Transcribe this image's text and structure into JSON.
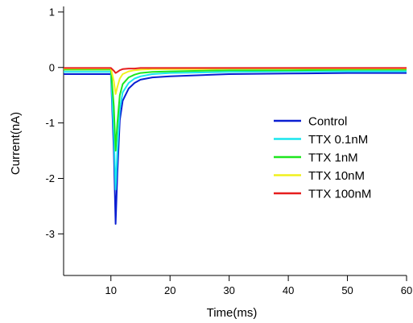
{
  "chart_data": {
    "type": "line",
    "xlabel": "Time(ms)",
    "ylabel": "Current(nA)",
    "xlim": [
      2,
      60
    ],
    "ylim": [
      -3.75,
      1.1
    ],
    "xticks": [
      10,
      20,
      30,
      40,
      50,
      60
    ],
    "yticks": [
      1,
      0,
      -1,
      -2,
      -3
    ],
    "xtick_labels": [
      "10",
      "20",
      "30",
      "40",
      "50",
      "60"
    ],
    "ytick_labels": [
      "1",
      "0",
      "-1",
      "-2",
      "-3"
    ],
    "legend_position": "right",
    "series": [
      {
        "name": "Control",
        "color": "#0a1ed2",
        "x": [
          2,
          6,
          10,
          10.5,
          10.8,
          11.1,
          11.5,
          12,
          13,
          14,
          15,
          17,
          20,
          25,
          30,
          40,
          50,
          60
        ],
        "y": [
          -0.12,
          -0.12,
          -0.12,
          -1.5,
          -2.82,
          -1.9,
          -0.95,
          -0.6,
          -0.38,
          -0.28,
          -0.22,
          -0.18,
          -0.16,
          -0.14,
          -0.12,
          -0.11,
          -0.1,
          -0.1
        ]
      },
      {
        "name": "TTX 0.1nM",
        "color": "#19e6ee",
        "x": [
          2,
          6,
          10,
          10.5,
          10.8,
          11.1,
          11.5,
          12,
          13,
          14,
          15,
          17,
          20,
          25,
          30,
          40,
          50,
          60
        ],
        "y": [
          -0.08,
          -0.08,
          -0.08,
          -1.2,
          -2.2,
          -1.5,
          -0.75,
          -0.45,
          -0.28,
          -0.2,
          -0.16,
          -0.12,
          -0.1,
          -0.09,
          -0.08,
          -0.07,
          -0.07,
          -0.07
        ]
      },
      {
        "name": "TTX 1nM",
        "color": "#1ee61e",
        "x": [
          2,
          6,
          10,
          10.5,
          10.8,
          11.1,
          11.5,
          12,
          13,
          14,
          15,
          17,
          20,
          25,
          30,
          40,
          50,
          60
        ],
        "y": [
          -0.04,
          -0.04,
          -0.04,
          -0.7,
          -1.5,
          -1.0,
          -0.5,
          -0.3,
          -0.18,
          -0.13,
          -0.1,
          -0.08,
          -0.07,
          -0.06,
          -0.05,
          -0.05,
          -0.04,
          -0.04
        ]
      },
      {
        "name": "TTX 10nM",
        "color": "#f0f01e",
        "x": [
          2,
          6,
          10,
          10.5,
          10.8,
          11.1,
          11.5,
          12,
          13,
          14,
          15,
          17,
          20,
          25,
          30,
          40,
          50,
          60
        ],
        "y": [
          -0.02,
          -0.02,
          -0.02,
          -0.25,
          -0.48,
          -0.35,
          -0.2,
          -0.12,
          -0.07,
          -0.05,
          -0.04,
          -0.03,
          -0.03,
          -0.03,
          -0.02,
          -0.02,
          -0.02,
          -0.02
        ]
      },
      {
        "name": "TTX 100nM",
        "color": "#e61e1e",
        "x": [
          2,
          6,
          10,
          10.5,
          10.8,
          11.1,
          11.5,
          12,
          13,
          14,
          15,
          17,
          20,
          25,
          30,
          40,
          50,
          60
        ],
        "y": [
          -0.01,
          -0.01,
          -0.01,
          -0.06,
          -0.1,
          -0.08,
          -0.05,
          -0.03,
          -0.02,
          -0.02,
          -0.01,
          -0.01,
          -0.01,
          -0.01,
          -0.01,
          -0.01,
          -0.01,
          -0.01
        ]
      }
    ]
  }
}
